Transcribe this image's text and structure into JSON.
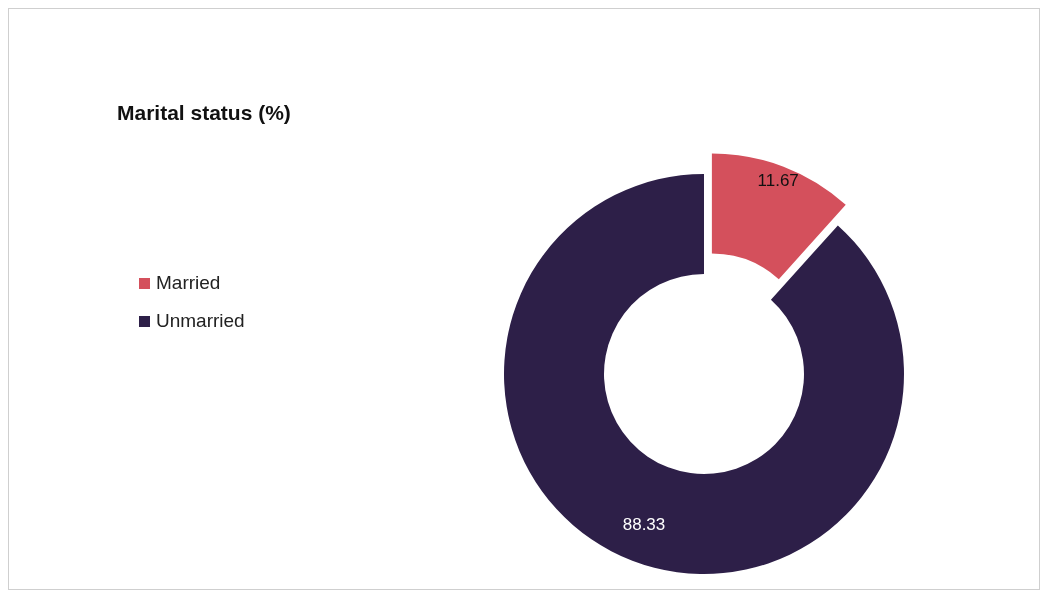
{
  "chart_data": {
    "type": "donut",
    "title": "Marital status (%)",
    "categories": [
      "Married",
      "Unmarried"
    ],
    "values": [
      11.67,
      88.33
    ],
    "colors": [
      "#d4505c",
      "#2d1f48"
    ],
    "data_labels": true,
    "legend": "left"
  }
}
